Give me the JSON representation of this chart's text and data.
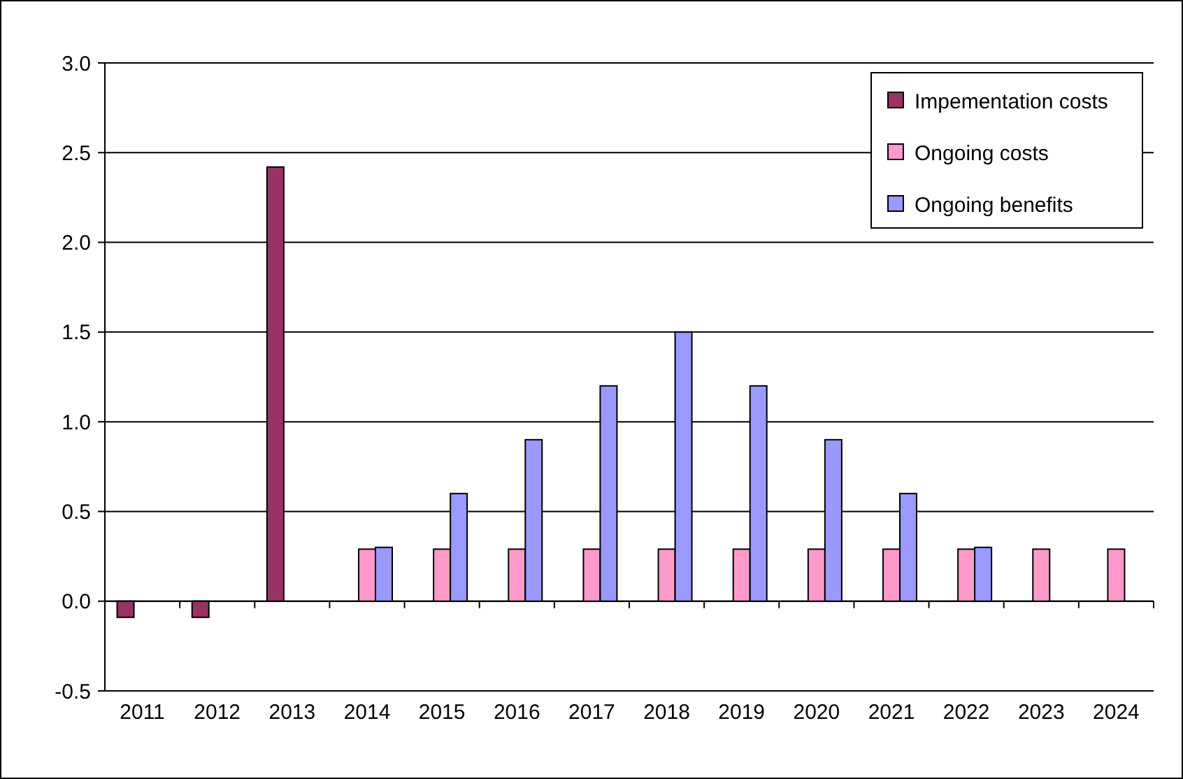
{
  "chart_data": {
    "type": "bar",
    "categories": [
      "2011",
      "2012",
      "2013",
      "2014",
      "2015",
      "2016",
      "2017",
      "2018",
      "2019",
      "2020",
      "2021",
      "2022",
      "2023",
      "2024"
    ],
    "series": [
      {
        "name": "Impementation costs",
        "color": "#993366",
        "values": [
          -0.09,
          -0.09,
          2.42,
          null,
          null,
          null,
          null,
          null,
          null,
          null,
          null,
          null,
          null,
          null
        ]
      },
      {
        "name": "Ongoing costs",
        "color": "#ff99cc",
        "values": [
          null,
          null,
          null,
          0.29,
          0.29,
          0.29,
          0.29,
          0.29,
          0.29,
          0.29,
          0.29,
          0.29,
          0.29,
          0.29
        ]
      },
      {
        "name": "Ongoing benefits",
        "color": "#9999ff",
        "values": [
          null,
          null,
          null,
          0.3,
          0.6,
          0.9,
          1.2,
          1.5,
          1.2,
          0.9,
          0.6,
          0.3,
          null,
          null
        ]
      }
    ],
    "ylim": [
      -0.5,
      3.0
    ],
    "yticks": [
      {
        "value": -0.5,
        "label": "-0.5"
      },
      {
        "value": 0,
        "label": "0.0"
      },
      {
        "value": 0.5,
        "label": "0.5"
      },
      {
        "value": 1,
        "label": "1.0"
      },
      {
        "value": 1.5,
        "label": "1.5"
      },
      {
        "value": 2,
        "label": "2.0"
      },
      {
        "value": 2.5,
        "label": "2.5"
      },
      {
        "value": 3,
        "label": "3.0"
      }
    ],
    "grid": "y",
    "legend": "top right"
  }
}
